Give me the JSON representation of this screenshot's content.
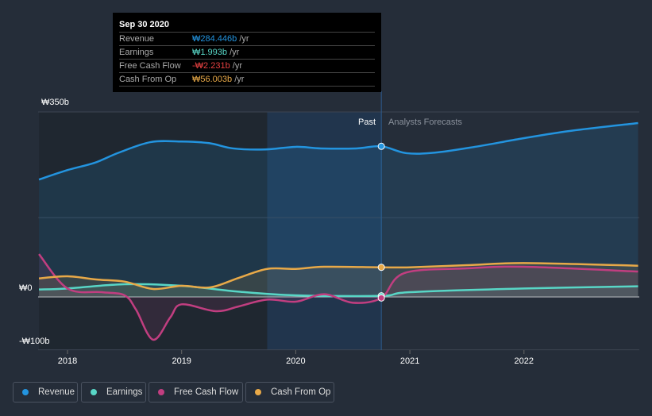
{
  "chart_data": {
    "type": "line",
    "y_unit": "₩ billions",
    "ylim": [
      -100,
      350
    ],
    "xlim": [
      2017.75,
      2023.0
    ],
    "y_tick_labels": [
      "₩350b",
      "₩0",
      "-₩100b"
    ],
    "x_tick_labels": [
      "2018",
      "2019",
      "2020",
      "2021",
      "2022"
    ],
    "region_labels": {
      "past": "Past",
      "forecast": "Analysts Forecasts"
    },
    "past_end": 2020.75,
    "series": [
      {
        "name": "Revenue",
        "color": "#2394df",
        "x": [
          2017.75,
          2018,
          2018.24,
          2018.45,
          2018.73,
          2019,
          2019.24,
          2019.45,
          2019.73,
          2020,
          2020.22,
          2020.53,
          2020.75,
          2020.97,
          2021.22,
          2021.57,
          2021.99,
          2022.4,
          2023
        ],
        "values": [
          222,
          240,
          254,
          273,
          293,
          294,
          291,
          281,
          279,
          284,
          281,
          281,
          285,
          272,
          273,
          284,
          300,
          314,
          329
        ]
      },
      {
        "name": "Earnings",
        "color": "#58d6c6",
        "x": [
          2017.75,
          2018,
          2018.5,
          2019,
          2019.5,
          2020,
          2020.75,
          2021,
          2022,
          2023
        ],
        "values": [
          14,
          16,
          24,
          21,
          10,
          3,
          2,
          9,
          16,
          20
        ]
      },
      {
        "name": "Free Cash Flow",
        "color": "#c13e80",
        "x": [
          2017.75,
          2018,
          2018.3,
          2018.5,
          2018.6,
          2018.75,
          2018.9,
          2019,
          2019.3,
          2019.5,
          2019.75,
          2020,
          2020.25,
          2020.5,
          2020.75,
          2020.95,
          2021.5,
          2022,
          2023
        ],
        "values": [
          81,
          16,
          9,
          3,
          -24,
          -81,
          -39,
          -14,
          -27,
          -18,
          -5,
          -9,
          5,
          -11,
          -2,
          45,
          54,
          57,
          48
        ]
      },
      {
        "name": "Cash From Op",
        "color": "#e8a948",
        "x": [
          2017.75,
          2018,
          2018.25,
          2018.5,
          2018.75,
          2019,
          2019.25,
          2019.5,
          2019.75,
          2020,
          2020.25,
          2020.75,
          2021,
          2021.5,
          2022,
          2023
        ],
        "values": [
          35,
          39,
          33,
          29,
          15,
          21,
          18,
          36,
          53,
          53,
          57,
          56,
          56,
          60,
          64,
          59
        ]
      }
    ],
    "tooltip": {
      "date": "Sep 30 2020",
      "rows": [
        {
          "label": "Revenue",
          "value": "₩284.446b",
          "unit": " /yr",
          "color": "#2394df"
        },
        {
          "label": "Earnings",
          "value": "₩1.993b",
          "unit": " /yr",
          "color": "#58d6c6"
        },
        {
          "label": "Free Cash Flow",
          "value": "-₩2.231b",
          "unit": " /yr",
          "color": "#e64141"
        },
        {
          "label": "Cash From Op",
          "value": "₩56.003b",
          "unit": " /yr",
          "color": "#e8a948"
        }
      ]
    }
  },
  "legend": [
    {
      "label": "Revenue",
      "color": "#2394df"
    },
    {
      "label": "Earnings",
      "color": "#58d6c6"
    },
    {
      "label": "Free Cash Flow",
      "color": "#c13e80"
    },
    {
      "label": "Cash From Op",
      "color": "#e8a948"
    }
  ]
}
